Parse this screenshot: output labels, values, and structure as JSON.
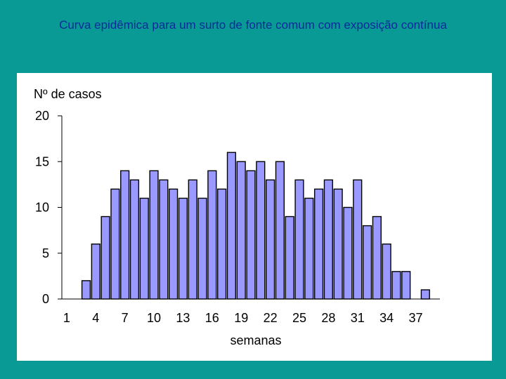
{
  "slide": {
    "title": "Curva epidêmica para um surto de fonte comum com exposição contínua"
  },
  "chart_data": {
    "type": "bar",
    "ylabel": "Nº de casos",
    "xlabel": "semanas",
    "ylim": [
      0,
      20
    ],
    "yticks": [
      0,
      5,
      10,
      15,
      20
    ],
    "xticks": [
      1,
      4,
      7,
      10,
      13,
      16,
      19,
      22,
      25,
      28,
      31,
      34,
      37
    ],
    "x": [
      1,
      2,
      3,
      4,
      5,
      6,
      7,
      8,
      9,
      10,
      11,
      12,
      13,
      14,
      15,
      16,
      17,
      18,
      19,
      20,
      21,
      22,
      23,
      24,
      25,
      26,
      27,
      28,
      29,
      30,
      31,
      32,
      33,
      34,
      35,
      36,
      37,
      38,
      39
    ],
    "values": [
      0,
      0,
      2,
      6,
      9,
      12,
      14,
      13,
      11,
      14,
      13,
      12,
      11,
      13,
      11,
      14,
      12,
      16,
      15,
      14,
      15,
      13,
      15,
      9,
      13,
      11,
      12,
      13,
      12,
      10,
      13,
      8,
      9,
      6,
      3,
      3,
      0,
      1,
      0
    ],
    "bar_color": "#9999ff",
    "grid": false
  }
}
